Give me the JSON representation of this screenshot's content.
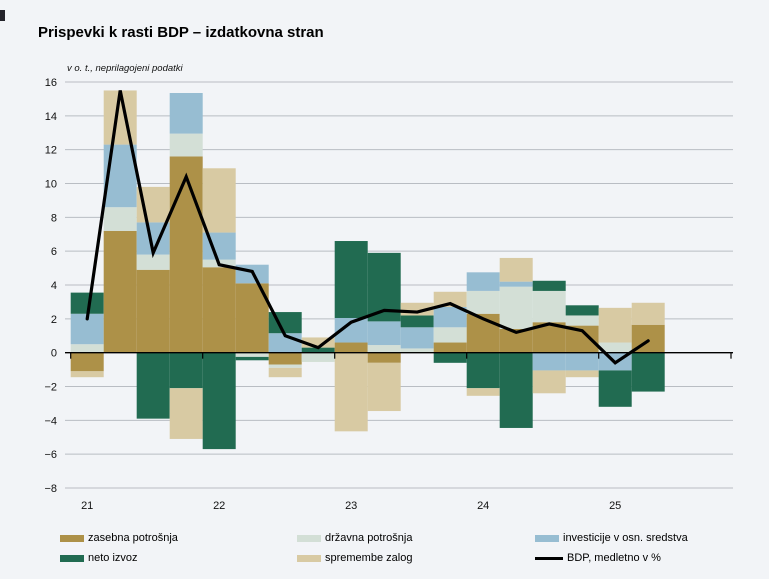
{
  "title": "Prispevki k rasti BDP – izdatkovna stran",
  "subtitle": "v o. t., neprilagojeni podatki",
  "legend": {
    "items": [
      {
        "key": "zasebna",
        "label": "zasebna potrošnja"
      },
      {
        "key": "drzavna",
        "label": "državna potrošnja"
      },
      {
        "key": "investicije",
        "label": "investicije v osn. sredstva"
      },
      {
        "key": "neto",
        "label": "neto izvoz"
      },
      {
        "key": "zaloge",
        "label": "spremembe zalog"
      },
      {
        "key": "line",
        "label": "BDP, medletno v %"
      }
    ]
  },
  "chart_data": {
    "type": "bar",
    "stacked": true,
    "title": "Prispevki k rasti BDP – izdatkovna stran",
    "subtitle": "v o. t., neprilagojeni podatki",
    "ylabel": "",
    "xlabel": "",
    "ylim": [
      -8,
      16
    ],
    "ytick_step": 2,
    "grid": true,
    "legend_position": "bottom",
    "categories": [
      "21Q1",
      "21Q2",
      "21Q3",
      "21Q4",
      "22Q1",
      "22Q2",
      "22Q3",
      "22Q4",
      "23Q1",
      "23Q2",
      "23Q3",
      "23Q4",
      "24Q1",
      "24Q2",
      "24Q3",
      "24Q4",
      "25Q1",
      "25Q2"
    ],
    "x_year_labels": [
      "21",
      "22",
      "23",
      "24",
      "25"
    ],
    "y_ticks": [
      16,
      14,
      12,
      10,
      8,
      6,
      4,
      2,
      0,
      -2,
      -4,
      -6,
      -8
    ],
    "series_order": [
      "zasebna",
      "drzavna",
      "investicije",
      "neto",
      "zaloge"
    ],
    "colors": {
      "zasebna": "#ad9148",
      "drzavna": "#d3dfd6",
      "investicije": "#97bdd2",
      "neto": "#216b51",
      "zaloge": "#d8caa3",
      "line": "#000000"
    },
    "series": [
      {
        "key": "zasebna",
        "name": "zasebna potrošnja",
        "values": [
          -1.1,
          7.2,
          4.9,
          11.6,
          5.05,
          4.1,
          -0.7,
          0,
          0.6,
          -0.6,
          0,
          0.6,
          2.3,
          1.4,
          1.8,
          1.6,
          0,
          1.65
        ]
      },
      {
        "key": "drzavna",
        "name": "državna potrošnja",
        "values": [
          0.5,
          1.4,
          0.9,
          1.35,
          0.45,
          -0.25,
          -0.2,
          -0.55,
          0,
          0.45,
          0.25,
          0.9,
          1.35,
          2.5,
          1.85,
          0.6,
          0.6,
          0
        ]
      },
      {
        "key": "investicije",
        "name": "investicije v osn. sredstva",
        "values": [
          1.8,
          3.7,
          1.9,
          2.4,
          1.6,
          1.1,
          1.15,
          0,
          1.45,
          1.4,
          1.25,
          1.2,
          1.1,
          0.3,
          -1.05,
          -1.05,
          -1.05,
          0
        ]
      },
      {
        "key": "neto",
        "name": "neto izvoz",
        "values": [
          1.25,
          0,
          -3.9,
          -2.1,
          -5.7,
          -0.2,
          1.25,
          0.3,
          4.55,
          4.05,
          0.7,
          -0.6,
          -2.1,
          -4.45,
          0.6,
          0.6,
          -2.15,
          -2.3
        ]
      },
      {
        "key": "zaloge",
        "name": "spremembe zalog",
        "values": [
          -0.35,
          3.2,
          2.1,
          -3.0,
          3.8,
          0,
          -0.55,
          0.6,
          -4.65,
          -2.85,
          0.75,
          0.9,
          -0.45,
          1.4,
          -1.35,
          -0.4,
          2.05,
          1.3
        ]
      }
    ],
    "line": {
      "name": "BDP, medletno v %",
      "values": [
        2.0,
        15.5,
        5.9,
        10.4,
        5.2,
        4.8,
        1.0,
        0.3,
        1.8,
        2.5,
        2.4,
        2.9,
        2.0,
        1.2,
        1.7,
        1.3,
        -0.6,
        0.7
      ]
    }
  }
}
